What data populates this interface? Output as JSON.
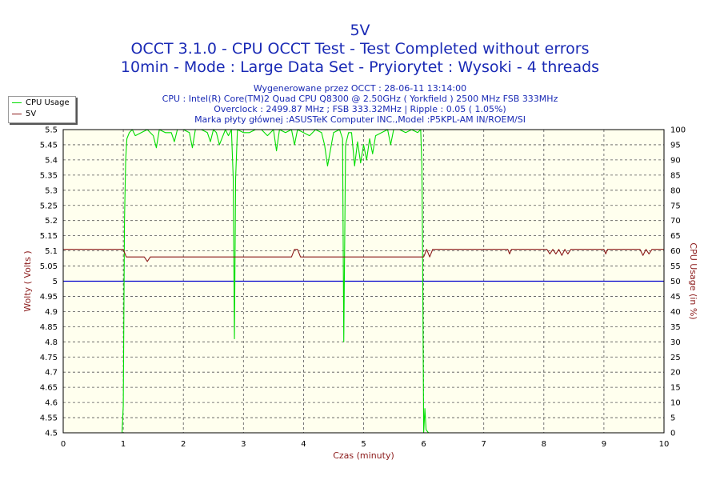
{
  "chart_data": {
    "type": "line",
    "title": "5V",
    "subtitle_lines": [
      "OCCT 3.1.0 - CPU OCCT Test - Test Completed without errors",
      "10min - Mode : Large Data Set - Pryiorytet : Wysoki - 4 threads"
    ],
    "info_lines": [
      "Wygenerowane przez OCCT : 28-06-11 13:14:00",
      "CPU : Intel(R) Core(TM)2 Quad CPU Q8300 @ 2.50GHz ( Yorkfield ) 2500 MHz FSB 333MHz",
      "Overclock : 2499.87 MHz ; FSB 333.32MHz | Ripple : 0.05 ( 1.05%)",
      "Marka płyty głównej :ASUSTeK Computer INC.,Model :P5KPL-AM IN/ROEM/SI"
    ],
    "xlabel": "Czas (minuty)",
    "ylabel_left": "Wolty ( Volts )",
    "ylabel_right": "CPU Usage (in %)",
    "xlim": [
      0,
      10
    ],
    "ylim_left": [
      4.5,
      5.5
    ],
    "ylim_right": [
      0,
      100
    ],
    "x_ticks": [
      "0",
      "1",
      "2",
      "3",
      "4",
      "5",
      "6",
      "7",
      "8",
      "9",
      "10"
    ],
    "y_left_ticks": [
      "5.5",
      "5.45",
      "5.4",
      "5.35",
      "5.3",
      "5.25",
      "5.2",
      "5.15",
      "5.1",
      "5.05",
      "5",
      "4.95",
      "4.9",
      "4.85",
      "4.8",
      "4.75",
      "4.7",
      "4.65",
      "4.6",
      "4.55",
      "4.5"
    ],
    "y_right_ticks": [
      "100",
      "95",
      "90",
      "85",
      "80",
      "75",
      "70",
      "65",
      "60",
      "55",
      "50",
      "45",
      "40",
      "35",
      "30",
      "25",
      "20",
      "15",
      "10",
      "5",
      "0"
    ],
    "grid": true,
    "legend_position": "top-left",
    "reference_line": {
      "y_left": 5.0,
      "color": "#0000cc"
    },
    "series": [
      {
        "name": "CPU Usage",
        "axis": "right",
        "color": "#00dd00",
        "x": [
          0,
          0.98,
          1.0,
          1.02,
          1.04,
          1.06,
          1.1,
          1.15,
          1.2,
          1.3,
          1.4,
          1.5,
          1.55,
          1.6,
          1.7,
          1.8,
          1.85,
          1.9,
          2.0,
          2.1,
          2.15,
          2.2,
          2.3,
          2.4,
          2.45,
          2.5,
          2.55,
          2.6,
          2.7,
          2.75,
          2.8,
          2.83,
          2.85,
          2.87,
          2.9,
          3.0,
          3.1,
          3.2,
          3.3,
          3.4,
          3.5,
          3.55,
          3.6,
          3.7,
          3.8,
          3.85,
          3.9,
          4.0,
          4.1,
          4.2,
          4.3,
          4.35,
          4.4,
          4.5,
          4.6,
          4.65,
          4.67,
          4.7,
          4.75,
          4.8,
          4.85,
          4.9,
          4.95,
          5.0,
          5.05,
          5.1,
          5.15,
          5.2,
          5.3,
          5.4,
          5.45,
          5.5,
          5.6,
          5.7,
          5.8,
          5.9,
          5.95,
          5.97,
          5.98,
          6.0,
          6.02,
          6.04,
          6.08,
          6.2,
          10
        ],
        "values": [
          0,
          0,
          9,
          70,
          90,
          97,
          99,
          100,
          98,
          99,
          100,
          98,
          94,
          100,
          99,
          99,
          96,
          100,
          100,
          99,
          94,
          100,
          100,
          99,
          96,
          100,
          99,
          95,
          100,
          98,
          100,
          84,
          31,
          84,
          100,
          99,
          99,
          100,
          100,
          98,
          100,
          93,
          100,
          99,
          100,
          95,
          100,
          99,
          98,
          100,
          99,
          95,
          88,
          99,
          100,
          97,
          30,
          95,
          99,
          99,
          88,
          96,
          89,
          95,
          90,
          97,
          92,
          98,
          99,
          100,
          95,
          100,
          100,
          99,
          100,
          99,
          100,
          88,
          65,
          0,
          8,
          1,
          0,
          0,
          0
        ]
      },
      {
        "name": "5V",
        "axis": "left",
        "color": "#8b1a1a",
        "x": [
          0,
          1.0,
          1.05,
          1.1,
          1.35,
          1.4,
          1.45,
          2.0,
          3.0,
          3.8,
          3.85,
          3.9,
          3.95,
          5.0,
          6.0,
          6.05,
          6.1,
          6.15,
          6.2,
          7.4,
          7.43,
          7.46,
          8.05,
          8.1,
          8.15,
          8.2,
          8.25,
          8.3,
          8.35,
          8.4,
          8.45,
          9.0,
          9.03,
          9.06,
          9.6,
          9.65,
          9.7,
          9.75,
          9.8,
          9.85,
          10
        ],
        "values": [
          5.105,
          5.105,
          5.08,
          5.08,
          5.08,
          5.065,
          5.08,
          5.08,
          5.08,
          5.08,
          5.105,
          5.105,
          5.08,
          5.08,
          5.08,
          5.105,
          5.08,
          5.105,
          5.105,
          5.105,
          5.09,
          5.105,
          5.105,
          5.09,
          5.105,
          5.09,
          5.105,
          5.085,
          5.105,
          5.09,
          5.105,
          5.105,
          5.09,
          5.105,
          5.105,
          5.085,
          5.105,
          5.09,
          5.105,
          5.105,
          5.105
        ]
      }
    ]
  }
}
